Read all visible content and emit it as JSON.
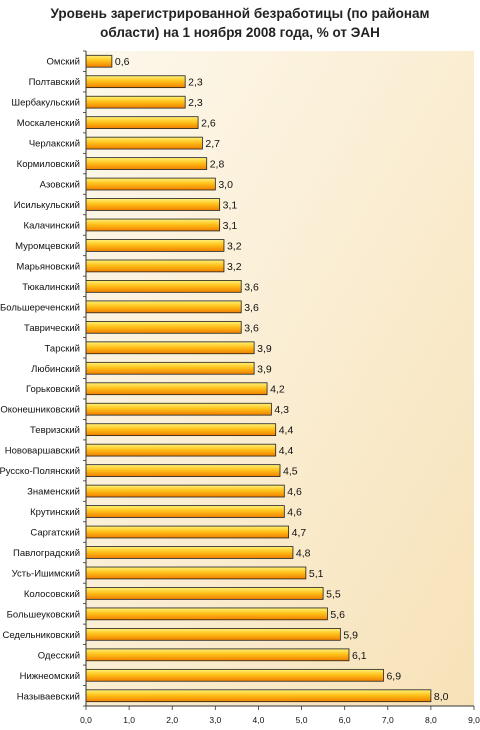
{
  "chart_data": {
    "type": "bar",
    "orientation": "horizontal",
    "title_lines": [
      "Уровень зарегистрированной безработицы (по районам",
      "области) на 1 ноября 2008 года, % от ЭАН"
    ],
    "categories": [
      "Омский",
      "Полтавский",
      "Шербакульский",
      "Москаленский",
      "Черлакский",
      "Кормиловский",
      "Азовский",
      "Исилькульский",
      "Калачинский",
      "Муромцевский",
      "Марьяновский",
      "Тюкалинский",
      "Большереченский",
      "Таврический",
      "Тарский",
      "Любинский",
      "Горьковский",
      "Оконешниковский",
      "Тевризский",
      "Нововаршавский",
      "Русско-Полянский",
      "Знаменский",
      "Крутинский",
      "Саргатский",
      "Павлоградский",
      "Усть-Ишимский",
      "Колосовский",
      "Большеуковский",
      "Седельниковский",
      "Одесский",
      "Нижнеомский",
      "Называевский"
    ],
    "values": [
      0.6,
      2.3,
      2.3,
      2.6,
      2.7,
      2.8,
      3.0,
      3.1,
      3.1,
      3.2,
      3.2,
      3.6,
      3.6,
      3.6,
      3.9,
      3.9,
      4.2,
      4.3,
      4.4,
      4.4,
      4.5,
      4.6,
      4.6,
      4.7,
      4.8,
      5.1,
      5.5,
      5.6,
      5.9,
      6.1,
      6.9,
      8.0
    ],
    "value_labels": [
      "0,6",
      "2,3",
      "2,3",
      "2,6",
      "2,7",
      "2,8",
      "3,0",
      "3,1",
      "3,1",
      "3,2",
      "3,2",
      "3,6",
      "3,6",
      "3,6",
      "3,9",
      "3,9",
      "4,2",
      "4,3",
      "4,4",
      "4,4",
      "4,5",
      "4,6",
      "4,6",
      "4,7",
      "4,8",
      "5,1",
      "5,5",
      "5,6",
      "5,9",
      "6,1",
      "6,9",
      "8,0"
    ],
    "xlim": [
      0,
      9
    ],
    "x_ticks": [
      "0,0",
      "1,0",
      "2,0",
      "3,0",
      "4,0",
      "5,0",
      "6,0",
      "7,0",
      "8,0",
      "9,0"
    ],
    "grid": false,
    "legend": "none",
    "colors": {
      "plot_bg_light": "#fdf8ec",
      "plot_bg_dark": "#f7e2b8",
      "bar_top": "#fff27a",
      "bar_mid": "#ffc21a",
      "bar_bottom": "#f07f00",
      "bar_stroke": "#202020",
      "axis": "#333333"
    }
  }
}
